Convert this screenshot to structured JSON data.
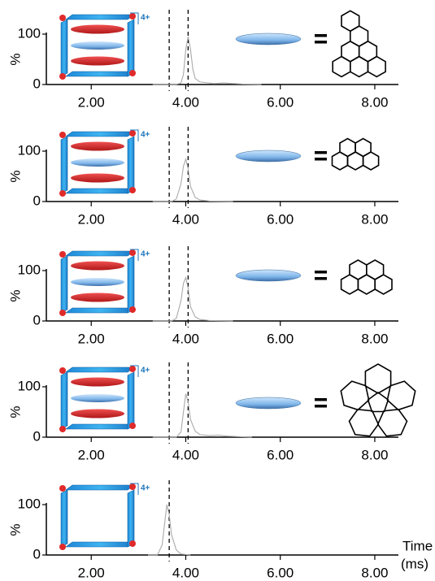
{
  "chart_data": [
    {
      "type": "line",
      "annotation": "4+",
      "ylabel": "%",
      "color": "#aaaaaa",
      "xlim": [
        1.05,
        8.5
      ],
      "ylim": [
        0,
        100
      ],
      "xticks": [
        {
          "value": 2,
          "label": "2.00"
        },
        {
          "value": 4,
          "label": "4.00"
        },
        {
          "value": 6,
          "label": "6.00"
        },
        {
          "value": 8,
          "label": "8.00"
        }
      ],
      "yticks": [
        0,
        100
      ],
      "vlines": [
        3.65,
        4.05
      ],
      "x": [
        3.3,
        3.8,
        3.9,
        3.95,
        4.0,
        4.05,
        4.1,
        4.15,
        4.2,
        4.3,
        4.4,
        4.6,
        4.8,
        5.0,
        5.2,
        5.6
      ],
      "values": [
        0,
        0,
        3,
        20,
        70,
        95,
        70,
        30,
        12,
        5,
        4,
        2,
        3,
        2,
        1,
        0
      ]
    },
    {
      "type": "line",
      "annotation": "4+",
      "ylabel": "%",
      "color": "#aaaaaa",
      "xlim": [
        1.05,
        8.5
      ],
      "ylim": [
        0,
        100
      ],
      "xticks": [
        {
          "value": 2,
          "label": "2.00"
        },
        {
          "value": 4,
          "label": "4.00"
        },
        {
          "value": 6,
          "label": "6.00"
        },
        {
          "value": 8,
          "label": "8.00"
        }
      ],
      "yticks": [
        0,
        100
      ],
      "vlines": [
        3.65,
        4.05
      ],
      "x": [
        3.3,
        3.7,
        3.8,
        3.9,
        3.95,
        4.0,
        4.05,
        4.1,
        4.2,
        4.3,
        4.5,
        5.0
      ],
      "values": [
        0,
        0,
        5,
        35,
        70,
        84,
        65,
        30,
        8,
        3,
        1,
        0
      ]
    },
    {
      "type": "line",
      "annotation": "4+",
      "ylabel": "%",
      "color": "#aaaaaa",
      "xlim": [
        1.05,
        8.5
      ],
      "ylim": [
        0,
        100
      ],
      "xticks": [
        {
          "value": 2,
          "label": "2.00"
        },
        {
          "value": 4,
          "label": "4.00"
        },
        {
          "value": 6,
          "label": "6.00"
        },
        {
          "value": 8,
          "label": "8.00"
        }
      ],
      "yticks": [
        0,
        100
      ],
      "vlines": [
        3.65,
        4.05
      ],
      "x": [
        3.3,
        3.7,
        3.8,
        3.9,
        3.95,
        4.0,
        4.05,
        4.1,
        4.2,
        4.3,
        4.5,
        5.0
      ],
      "values": [
        0,
        0,
        5,
        40,
        75,
        86,
        65,
        28,
        8,
        3,
        1,
        0
      ]
    },
    {
      "type": "line",
      "annotation": "4+",
      "ylabel": "%",
      "color": "#aaaaaa",
      "xlim": [
        1.05,
        8.5
      ],
      "ylim": [
        0,
        100
      ],
      "xticks": [
        {
          "value": 2,
          "label": "2.00"
        },
        {
          "value": 4,
          "label": "4.00"
        },
        {
          "value": 6,
          "label": "6.00"
        },
        {
          "value": 8,
          "label": "8.00"
        }
      ],
      "yticks": [
        0,
        100
      ],
      "vlines": [
        3.65,
        4.05
      ],
      "x": [
        3.3,
        3.8,
        3.9,
        3.95,
        4.0,
        4.05,
        4.1,
        4.2,
        4.3,
        4.5,
        4.7,
        4.9,
        5.4
      ],
      "values": [
        0,
        0,
        10,
        50,
        86,
        70,
        35,
        12,
        5,
        3,
        4,
        2,
        0
      ]
    },
    {
      "type": "line",
      "annotation": "4+",
      "ylabel": "%",
      "color": "#aaaaaa",
      "xlabel": [
        "Time",
        "(ms)"
      ],
      "xlim": [
        1.05,
        8.5
      ],
      "ylim": [
        0,
        100
      ],
      "xticks": [
        {
          "value": 2,
          "label": "2.00"
        },
        {
          "value": 4,
          "label": "4.00"
        },
        {
          "value": 6,
          "label": "6.00"
        },
        {
          "value": 8,
          "label": "8.00"
        }
      ],
      "yticks": [
        0,
        100
      ],
      "vlines": [
        3.65
      ],
      "x": [
        3.2,
        3.4,
        3.5,
        3.55,
        3.6,
        3.65,
        3.7,
        3.8,
        3.9,
        4.1
      ],
      "values": [
        0,
        0,
        20,
        60,
        100,
        80,
        40,
        10,
        2,
        0
      ]
    }
  ]
}
